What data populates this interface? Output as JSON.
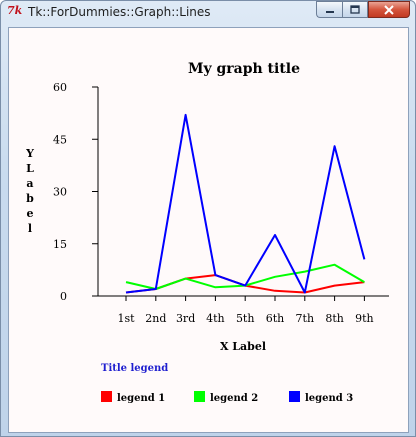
{
  "window": {
    "title": "Tk::ForDummies::Graph::Lines",
    "app_icon_text": "7k",
    "caption_buttons": {
      "minimize": "minimize",
      "maximize": "maximize",
      "close": "close"
    }
  },
  "chart_data": {
    "type": "line",
    "title": "My graph title",
    "xlabel": "X Label",
    "ylabel": "Y Label",
    "categories": [
      "1st",
      "2nd",
      "3rd",
      "4th",
      "5th",
      "6th",
      "7th",
      "8th",
      "9th"
    ],
    "ylim": [
      0,
      60
    ],
    "yticks": [
      0,
      15,
      30,
      45,
      60
    ],
    "grid": false,
    "legend_title": "Title legend",
    "legend_position": "bottom",
    "series": [
      {
        "name": "legend 1",
        "color": "#ff0000",
        "values": [
          1,
          2,
          5,
          6,
          3,
          1.5,
          1,
          3,
          4
        ]
      },
      {
        "name": "legend 2",
        "color": "#00ff00",
        "values": [
          4,
          2,
          5,
          2.5,
          3,
          5.5,
          7,
          9,
          4
        ]
      },
      {
        "name": "legend 3",
        "color": "#0000ff",
        "values": [
          1,
          2,
          52,
          6,
          3,
          17.5,
          1,
          43,
          10.5
        ]
      }
    ]
  }
}
